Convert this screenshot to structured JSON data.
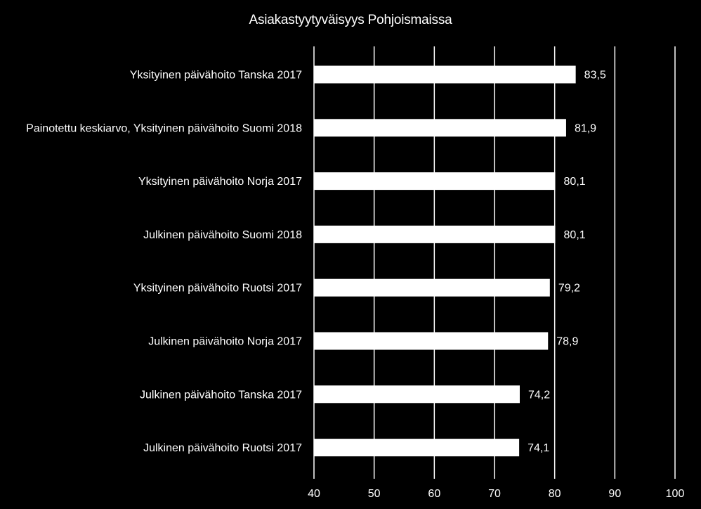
{
  "chart_data": {
    "type": "bar",
    "orientation": "horizontal",
    "title": "Asiakastyytyväisyys Pohjoismaissa",
    "categories": [
      "Yksityinen päivähoito Tanska 2017",
      "Painotettu keskiarvo, Yksityinen päivähoito Suomi 2018",
      "Yksityinen päivähoito Norja 2017",
      "Julkinen päivähoito Suomi 2018",
      "Yksityinen päivähoito Ruotsi 2017",
      "Julkinen päivähoito Norja 2017",
      "Julkinen päivähoito Tanska 2017",
      "Julkinen päivähoito Ruotsi 2017"
    ],
    "values": [
      83.5,
      81.9,
      80.1,
      80.1,
      79.2,
      78.9,
      74.2,
      74.1
    ],
    "value_labels": [
      "83,5",
      "81,9",
      "80,1",
      "80,1",
      "79,2",
      "78,9",
      "74,2",
      "74,1"
    ],
    "xlim": [
      40,
      100
    ],
    "xticks": [
      "40",
      "50",
      "60",
      "70",
      "80",
      "90",
      "100"
    ],
    "grid": "vertical",
    "colors": {
      "background": "#000000",
      "bar": "#ffffff",
      "text": "#ffffff",
      "grid": "#ffffff"
    }
  }
}
